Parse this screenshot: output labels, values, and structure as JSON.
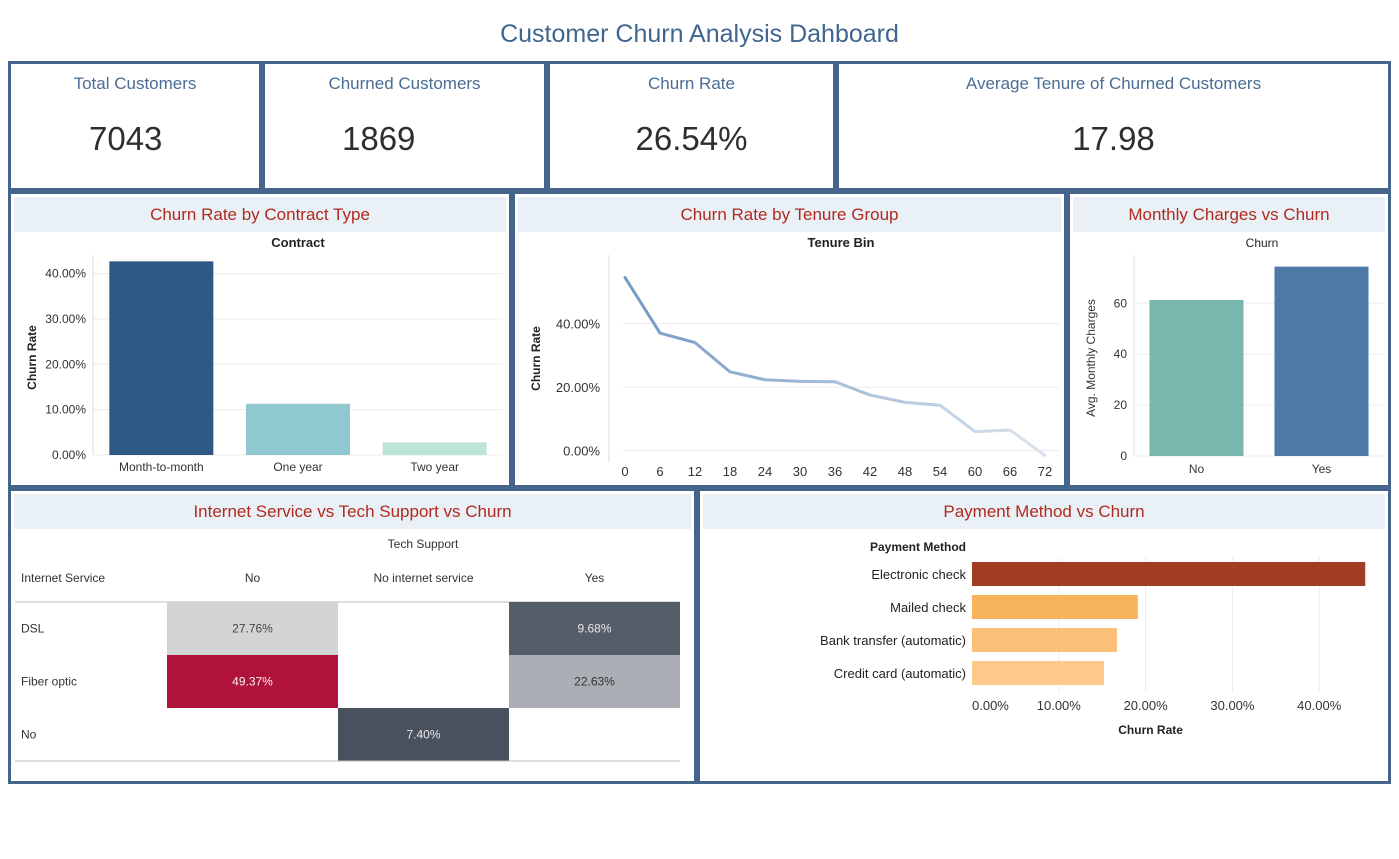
{
  "dashboard_title": "Customer Churn Analysis Dahboard",
  "kpis": [
    {
      "label": "Total Customers",
      "value": "7043"
    },
    {
      "label": "Churned Customers",
      "value": "1869"
    },
    {
      "label": "Churn Rate",
      "value": "26.54%"
    },
    {
      "label": "Average Tenure of Churned Customers",
      "value": "17.98"
    }
  ],
  "colors": {
    "border": "#45658c",
    "header_bg": "#e9f0f6",
    "header_text": "#b02a1f",
    "title": "#3f6690"
  },
  "chart_data": [
    {
      "type": "bar",
      "title": "Churn Rate by Contract Type",
      "subtitle": "Contract",
      "ylabel": "Churn Rate",
      "categories": [
        "Month-to-month",
        "One year",
        "Two year"
      ],
      "values": [
        42.7,
        11.3,
        2.8
      ],
      "colors": [
        "#2e5985",
        "#8fc8ce",
        "#bde4d8"
      ],
      "ylim": [
        0,
        43
      ],
      "yticks": [
        "0.00%",
        "10.00%",
        "20.00%",
        "30.00%",
        "40.00%"
      ],
      "grid": true
    },
    {
      "type": "line",
      "title": "Churn Rate by Tenure Group",
      "subtitle": "Tenure Bin",
      "ylabel": "Churn Rate",
      "x": [
        0,
        6,
        12,
        18,
        24,
        30,
        36,
        42,
        48,
        54,
        60,
        66,
        72
      ],
      "values": [
        54.5,
        37.0,
        34.0,
        24.8,
        22.3,
        21.8,
        21.7,
        17.5,
        15.2,
        14.3,
        6.0,
        6.5,
        -1.5
      ],
      "xticks": [
        "0",
        "6",
        "12",
        "18",
        "24",
        "30",
        "36",
        "42",
        "48",
        "54",
        "60",
        "66",
        "72"
      ],
      "yticks": [
        "0.00%",
        "20.00%",
        "40.00%"
      ],
      "ylim": [
        -2,
        60
      ],
      "grid": true
    },
    {
      "type": "bar",
      "title": "Monthly Charges vs Churn",
      "subtitle": "Churn",
      "ylabel": "Avg. Monthly Charges",
      "categories": [
        "No",
        "Yes"
      ],
      "values": [
        61.3,
        74.4
      ],
      "colors": [
        "#79b7ad",
        "#4e79a7"
      ],
      "ylim": [
        0,
        77
      ],
      "yticks": [
        "0",
        "20",
        "40",
        "60"
      ],
      "grid": true
    },
    {
      "type": "heatmap",
      "title": "Internet Service vs Tech Support vs Churn",
      "column_group_label": "Tech Support",
      "row_header": "Internet Service",
      "columns": [
        "No",
        "No internet service",
        "Yes"
      ],
      "rows": [
        "DSL",
        "Fiber optic",
        "No"
      ],
      "cells": [
        [
          "27.76%",
          "",
          "9.68%"
        ],
        [
          "49.37%",
          "",
          "22.63%"
        ],
        [
          "",
          "7.40%",
          ""
        ]
      ],
      "cell_colors": [
        [
          "#d3d4d6",
          "",
          "#555d69"
        ],
        [
          "#b01339",
          "",
          "#abaeb5"
        ],
        [
          "",
          "#4a515e",
          ""
        ]
      ],
      "text_colors": [
        [
          "#444444",
          "",
          "#e8e8e8"
        ],
        [
          "#f2f2f2",
          "",
          "#333333"
        ],
        [
          "",
          "#e8e8e8",
          ""
        ]
      ]
    },
    {
      "type": "bar",
      "orientation": "horizontal",
      "title": "Payment Method vs Churn",
      "category_header": "Payment Method",
      "xlabel": "Churn Rate",
      "categories": [
        "Electronic check",
        "Mailed check",
        "Bank transfer (automatic)",
        "Credit card (automatic)"
      ],
      "values": [
        45.3,
        19.1,
        16.7,
        15.2
      ],
      "colors": [
        "#a13d24",
        "#f8b35d",
        "#fdc079",
        "#fec98a"
      ],
      "xlim": [
        0,
        47
      ],
      "xticks": [
        "0.00%",
        "10.00%",
        "20.00%",
        "30.00%",
        "40.00%"
      ],
      "grid": true
    }
  ]
}
